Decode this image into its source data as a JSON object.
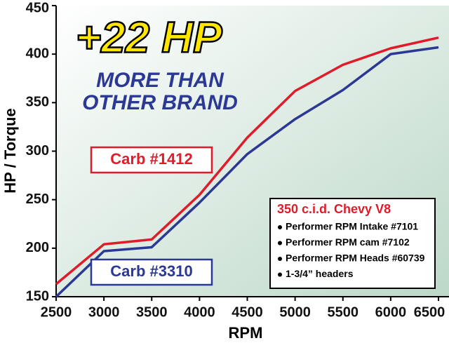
{
  "chart_data": {
    "type": "line",
    "headline": "+22 HP",
    "subheadline": [
      "MORE THAN",
      "OTHER BRAND"
    ],
    "x_label": "RPM",
    "y_label": "HP / Torque",
    "x": [
      2500,
      3000,
      3500,
      4000,
      4500,
      5000,
      5500,
      6000,
      6500
    ],
    "series": [
      {
        "name": "Carb #1412",
        "color": "#e01c2a",
        "values": [
          163,
          204,
          209,
          255,
          314,
          362,
          389,
          406,
          417
        ]
      },
      {
        "name": "Carb #3310",
        "color": "#2b3894",
        "values": [
          150,
          197,
          201,
          247,
          297,
          333,
          363,
          400,
          407
        ]
      }
    ],
    "xlim": [
      2500,
      6500
    ],
    "xticks": [
      2500,
      3000,
      3500,
      4000,
      4500,
      5000,
      5500,
      6000,
      6500
    ],
    "ylim": [
      150,
      450
    ],
    "yticks": [
      150,
      200,
      250,
      300,
      350,
      400,
      450
    ],
    "grid": false,
    "spec_box": {
      "title": "350 c.i.d. Chevy V8",
      "items": [
        "Performer RPM Intake #7101",
        "Performer RPM cam #7102",
        "Performer RPM Heads #60739",
        "1-3/4” headers"
      ]
    }
  }
}
